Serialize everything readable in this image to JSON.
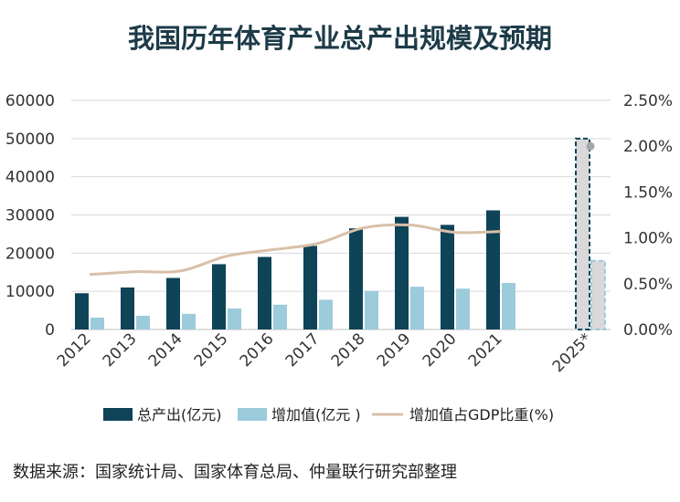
{
  "chart_data": {
    "type": "bar",
    "title": "我国历年体育产业总产出规模及预期",
    "categories": [
      "2012",
      "2013",
      "2014",
      "2015",
      "2016",
      "2017",
      "2018",
      "2019",
      "2020",
      "2021",
      "2025*"
    ],
    "series": [
      {
        "name": "总产出(亿元)",
        "kind": "bar",
        "axis": "left",
        "color": "#0f4358",
        "values": [
          9500,
          11000,
          13500,
          17100,
          19000,
          21900,
          26500,
          29500,
          27400,
          31200,
          50000
        ],
        "projected": [
          false,
          false,
          false,
          false,
          false,
          false,
          false,
          false,
          false,
          false,
          true
        ]
      },
      {
        "name": "增加值(亿元 )",
        "kind": "bar",
        "axis": "left",
        "color": "#9ccbdc",
        "values": [
          3100,
          3600,
          4100,
          5500,
          6500,
          7800,
          10100,
          11200,
          10700,
          12200,
          18000
        ],
        "projected": [
          false,
          false,
          false,
          false,
          false,
          false,
          false,
          false,
          false,
          false,
          true
        ]
      },
      {
        "name": "增加值占GDP比重(%)",
        "kind": "line",
        "axis": "right",
        "color": "#d9c0a8",
        "values": [
          0.6,
          0.63,
          0.64,
          0.8,
          0.87,
          0.94,
          1.11,
          1.14,
          1.06,
          1.07,
          2.0
        ]
      }
    ],
    "y_left": {
      "ylim": [
        0,
        60000
      ],
      "ticks": [
        "0",
        "10000",
        "20000",
        "30000",
        "40000",
        "50000",
        "60000"
      ]
    },
    "y_right": {
      "ylim": [
        0,
        2.5
      ],
      "ticks": [
        "0.00%",
        "0.50%",
        "1.00%",
        "1.50%",
        "2.00%",
        "2.50%"
      ]
    },
    "grid": true,
    "legend": "bottom",
    "source": "数据来源：国家统计局、国家体育总局、仲量联行研究部整理",
    "colors": {
      "projected_fill": "#d9d9d9",
      "projected_point": "#a6a6a6",
      "grid": "#d9d9d9"
    }
  }
}
